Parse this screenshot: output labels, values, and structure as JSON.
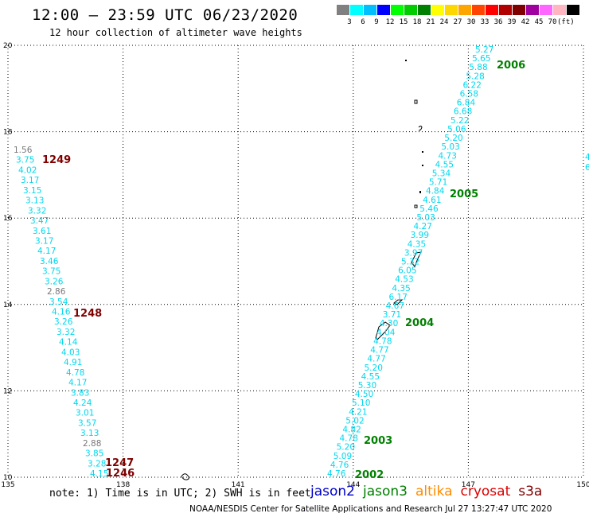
{
  "header": {
    "title": "12:00 – 23:59 UTC 06/23/2020",
    "subtitle": "12 hour collection of altimeter wave heights"
  },
  "colorbar": {
    "unit": "(ft)",
    "colors": [
      "#808080",
      "#00ffff",
      "#00bfff",
      "#0000ff",
      "#00ff00",
      "#00cc00",
      "#008000",
      "#ffff00",
      "#ffd700",
      "#ffa500",
      "#ff4500",
      "#ff0000",
      "#b00000",
      "#800000",
      "#a000a0",
      "#ff66ff",
      "#ffb6c1",
      "#000000"
    ],
    "labels": [
      "3",
      "6",
      "9",
      "12",
      "15",
      "18",
      "21",
      "24",
      "27",
      "30",
      "33",
      "36",
      "39",
      "42",
      "45",
      "70"
    ]
  },
  "map_axes": {
    "lon_labels": [
      "135",
      "138",
      "141",
      "144",
      "147",
      "150"
    ],
    "lat_labels": [
      "10",
      "12",
      "14",
      "16",
      "18",
      "20"
    ],
    "lon_range": [
      135,
      150
    ],
    "lat_range": [
      10,
      20
    ],
    "grid": true
  },
  "left_track": {
    "values": [
      "1.56",
      "3.75",
      "4.02",
      "3.17",
      "3.15",
      "3.13",
      "3.32",
      "3.47",
      "3.61",
      "3.17",
      "4.17",
      "3.46",
      "3.75",
      "3.26",
      "2.86",
      "3.54",
      "4.16",
      "3.26",
      "3.32",
      "4.14",
      "4.03",
      "4.91",
      "4.78",
      "4.17",
      "3.83",
      "4.24",
      "3.01",
      "3.57",
      "3.13",
      "2.88",
      "3.85",
      "3.28",
      "4.15"
    ],
    "gray": [
      0,
      14,
      29
    ]
  },
  "right_track": {
    "values": [
      "5.27",
      "5.65",
      "5.88",
      "5.28",
      "6.22",
      "6.58",
      "6.84",
      "6.68",
      "5.22",
      "5.06",
      "5.20",
      "5.03",
      "4.73",
      "4.55",
      "5.34",
      "5.71",
      "4.84",
      "4.61",
      "5.46",
      "5.03",
      "4.27",
      "3.99",
      "4.35",
      "3.97",
      "5.32",
      "6.05",
      "4.53",
      "4.35",
      "6.17",
      "4.67",
      "3.71",
      "4.30",
      "4.04",
      "4.78",
      "4.77",
      "4.77",
      "5.20",
      "4.55",
      "5.30",
      "4.50",
      "5.10",
      "4.21",
      "5.02",
      "4.82",
      "4.78",
      "5.20",
      "5.09",
      "4.76",
      "4.76"
    ]
  },
  "edge_labels": [
    "4",
    "6"
  ],
  "time_labels": [
    {
      "text": "1249",
      "color": "#800000"
    },
    {
      "text": "1248",
      "color": "#800000"
    },
    {
      "text": "1247",
      "color": "#800000"
    },
    {
      "text": "1246",
      "color": "#800000"
    },
    {
      "text": "2006",
      "color": "#008000"
    },
    {
      "text": "2005",
      "color": "#008000"
    },
    {
      "text": "2004",
      "color": "#008000"
    },
    {
      "text": "2003",
      "color": "#008000"
    },
    {
      "text": "2002",
      "color": "#008000"
    }
  ],
  "footer": {
    "note": "note: 1) Time is in UTC; 2) SWH is in feet",
    "legend": [
      {
        "name": "jason2",
        "color": "#0000cc"
      },
      {
        "name": "jason3",
        "color": "#008000"
      },
      {
        "name": "altika",
        "color": "#ff8c00"
      },
      {
        "name": "cryosat",
        "color": "#dd0000"
      },
      {
        "name": "s3a",
        "color": "#800000"
      }
    ],
    "credit": "NOAA/NESDIS Center for Satellite Applications and Research   Jul 27 13:27:47 UTC 2020"
  }
}
